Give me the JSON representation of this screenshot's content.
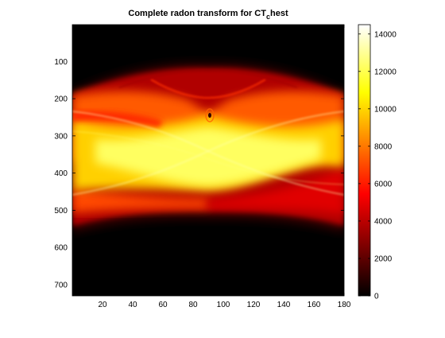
{
  "chart_data": {
    "type": "heatmap",
    "title": "Complete radon transform for CT",
    "title_subscript": "c",
    "title_suffix": "hest",
    "xlabel": "",
    "ylabel": "",
    "xlim": [
      0,
      180
    ],
    "ylim": [
      730,
      1
    ],
    "x_ticks": [
      20,
      40,
      60,
      80,
      100,
      120,
      140,
      160,
      180
    ],
    "y_ticks": [
      100,
      200,
      300,
      400,
      500,
      600,
      700
    ],
    "colormap": "hot",
    "colorbar": {
      "range": [
        0,
        14500
      ],
      "ticks": [
        0,
        2000,
        4000,
        6000,
        8000,
        10000,
        12000,
        14000
      ]
    },
    "structure": {
      "signal_upper_edge": [
        [
          0,
          185
        ],
        [
          30,
          150
        ],
        [
          60,
          125
        ],
        [
          90,
          112
        ],
        [
          120,
          125
        ],
        [
          150,
          150
        ],
        [
          180,
          185
        ]
      ],
      "signal_lower_edge": [
        [
          0,
          560
        ],
        [
          40,
          530
        ],
        [
          90,
          522
        ],
        [
          140,
          530
        ],
        [
          180,
          560
        ]
      ],
      "inner_arc": [
        [
          60,
          165
        ],
        [
          90,
          193
        ],
        [
          120,
          165
        ]
      ],
      "rib_ring_center": [
        91,
        240
      ]
    },
    "colors": {
      "cmap_black": "#000000",
      "cmap_red": "#ff0000",
      "cmap_yellow": "#ffff00",
      "cmap_white": "#ffffff"
    }
  }
}
